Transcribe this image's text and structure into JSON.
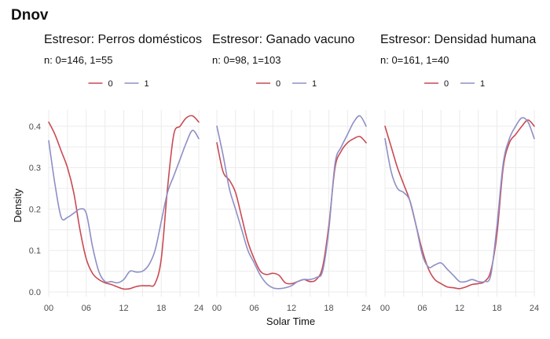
{
  "figure": {
    "title": "Dnov",
    "xlabel": "Solar Time",
    "ylabel": "Density"
  },
  "legend": {
    "entries": [
      {
        "label": "0",
        "color": "#c94a53"
      },
      {
        "label": "1",
        "color": "#8e8fc6"
      }
    ]
  },
  "chart_data": [
    {
      "type": "line",
      "title": "Estresor: Perros domésticos",
      "subtitle": "n:  0=146, 1=55",
      "xlim": [
        0,
        24
      ],
      "ylim": [
        0,
        0.43
      ],
      "xticks": [
        "00",
        "06",
        "12",
        "18",
        "24"
      ],
      "yticks": [
        "0.0",
        "0.1",
        "0.2",
        "0.3",
        "0.4"
      ],
      "series": [
        {
          "name": "0",
          "x": [
            0,
            1,
            2,
            3,
            4,
            5,
            6,
            7,
            8,
            9,
            10,
            11,
            12,
            13,
            14,
            15,
            16,
            17,
            18,
            19,
            20,
            21,
            22,
            23,
            24
          ],
          "y": [
            0.41,
            0.38,
            0.34,
            0.3,
            0.24,
            0.15,
            0.08,
            0.045,
            0.03,
            0.022,
            0.018,
            0.012,
            0.007,
            0.008,
            0.013,
            0.015,
            0.015,
            0.02,
            0.08,
            0.25,
            0.38,
            0.4,
            0.42,
            0.425,
            0.41
          ]
        },
        {
          "name": "1",
          "x": [
            0,
            1,
            2,
            3,
            4,
            5,
            6,
            7,
            8,
            9,
            10,
            11,
            12,
            13,
            14,
            15,
            16,
            17,
            18,
            19,
            20,
            21,
            22,
            23,
            24
          ],
          "y": [
            0.365,
            0.26,
            0.18,
            0.18,
            0.19,
            0.2,
            0.19,
            0.11,
            0.05,
            0.025,
            0.025,
            0.022,
            0.03,
            0.05,
            0.048,
            0.05,
            0.065,
            0.1,
            0.17,
            0.24,
            0.28,
            0.32,
            0.36,
            0.39,
            0.37
          ]
        }
      ]
    },
    {
      "type": "line",
      "title": "Estresor: Ganado vacuno",
      "subtitle": "n:  0=98, 1=103",
      "xlim": [
        0,
        24
      ],
      "ylim": [
        0,
        0.43
      ],
      "xticks": [
        "00",
        "06",
        "12",
        "18",
        "24"
      ],
      "yticks": [
        "0.0",
        "0.1",
        "0.2",
        "0.3",
        "0.4"
      ],
      "series": [
        {
          "name": "0",
          "x": [
            0,
            1,
            2,
            3,
            4,
            5,
            6,
            7,
            8,
            9,
            10,
            11,
            12,
            13,
            14,
            15,
            16,
            17,
            18,
            19,
            20,
            21,
            22,
            23,
            24
          ],
          "y": [
            0.36,
            0.29,
            0.27,
            0.24,
            0.18,
            0.12,
            0.08,
            0.05,
            0.042,
            0.045,
            0.04,
            0.022,
            0.02,
            0.025,
            0.03,
            0.025,
            0.03,
            0.06,
            0.16,
            0.3,
            0.34,
            0.36,
            0.37,
            0.375,
            0.36
          ]
        },
        {
          "name": "1",
          "x": [
            0,
            1,
            2,
            3,
            4,
            5,
            6,
            7,
            8,
            9,
            10,
            11,
            12,
            13,
            14,
            15,
            16,
            17,
            18,
            19,
            20,
            21,
            22,
            23,
            24
          ],
          "y": [
            0.4,
            0.33,
            0.25,
            0.2,
            0.15,
            0.1,
            0.07,
            0.04,
            0.02,
            0.01,
            0.008,
            0.01,
            0.015,
            0.025,
            0.03,
            0.03,
            0.035,
            0.05,
            0.15,
            0.31,
            0.35,
            0.38,
            0.41,
            0.425,
            0.4
          ]
        }
      ]
    },
    {
      "type": "line",
      "title": "Estresor: Densidad humana",
      "subtitle": "n:  0=161, 1=40",
      "xlim": [
        0,
        24
      ],
      "ylim": [
        0,
        0.43
      ],
      "xticks": [
        "00",
        "06",
        "12",
        "18",
        "24"
      ],
      "yticks": [
        "0.0",
        "0.1",
        "0.2",
        "0.3",
        "0.4"
      ],
      "series": [
        {
          "name": "0",
          "x": [
            0,
            1,
            2,
            3,
            4,
            5,
            6,
            7,
            8,
            9,
            10,
            11,
            12,
            13,
            14,
            15,
            16,
            17,
            18,
            19,
            20,
            21,
            22,
            23,
            24
          ],
          "y": [
            0.4,
            0.35,
            0.3,
            0.26,
            0.22,
            0.16,
            0.1,
            0.055,
            0.03,
            0.02,
            0.012,
            0.01,
            0.008,
            0.012,
            0.018,
            0.02,
            0.025,
            0.05,
            0.14,
            0.3,
            0.36,
            0.38,
            0.4,
            0.415,
            0.4
          ]
        },
        {
          "name": "1",
          "x": [
            0,
            1,
            2,
            3,
            4,
            5,
            6,
            7,
            8,
            9,
            10,
            11,
            12,
            13,
            14,
            15,
            16,
            17,
            18,
            19,
            20,
            21,
            22,
            23,
            24
          ],
          "y": [
            0.37,
            0.29,
            0.25,
            0.24,
            0.22,
            0.16,
            0.09,
            0.06,
            0.065,
            0.07,
            0.055,
            0.04,
            0.025,
            0.025,
            0.03,
            0.025,
            0.025,
            0.04,
            0.16,
            0.31,
            0.37,
            0.4,
            0.42,
            0.41,
            0.37
          ]
        }
      ]
    }
  ]
}
